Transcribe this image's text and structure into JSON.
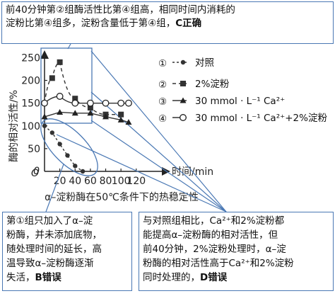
{
  "callouts": {
    "top": {
      "line1": "前40分钟第②组酶活性比第④组高，相同时间内消耗的",
      "line2_text": "淀粉比第④组多，淀粉含量低于第④组，",
      "line2_bold": "C正确"
    },
    "left": {
      "lines": [
        "第①组只加入了α–淀",
        "粉酶，并未添加底物，",
        "随处理时间的延长，高",
        "温导致α–淀粉酶逐渐"
      ],
      "last_text": "失活，",
      "last_bold": "B错误"
    },
    "right": {
      "line1": "与对照组相比，Ca²⁺和2%淀粉都",
      "line2": "能提高α–淀粉酶的相对活性，但",
      "line3": "前40分钟，2%淀粉处理时，α–淀",
      "line4": "粉酶的相对活性高于Ca²⁺和2%淀粉",
      "line5_text": "同时处理的，",
      "line5_bold": "D错误"
    }
  },
  "chart_data": {
    "type": "line",
    "title": "α–淀粉酶在50℃条件下的热稳定性",
    "xlabel": "时间/min",
    "ylabel": "酶的相对活性/%",
    "x_ticks": [
      "20",
      "40",
      "60",
      "80",
      "100",
      "120"
    ],
    "y_ticks": [
      "0",
      "50",
      "100",
      "150",
      "200",
      "250"
    ],
    "xlim": [
      0,
      130
    ],
    "ylim": [
      0,
      270
    ],
    "legend_position": "right",
    "series": [
      {
        "id": "s1",
        "name": "对照",
        "marker": "●",
        "x": [
          0,
          10,
          20,
          30,
          40,
          50
        ],
        "y": [
          100,
          85,
          60,
          35,
          12,
          0
        ]
      },
      {
        "id": "s2",
        "name": "2%淀粉",
        "marker": "■",
        "x": [
          0,
          10,
          20,
          40,
          60,
          80,
          100
        ],
        "y": [
          150,
          205,
          240,
          160,
          140,
          125,
          125
        ]
      },
      {
        "id": "s3",
        "name": "30 mmol · L⁻¹ Ca²⁺",
        "marker": "▲",
        "x": [
          0,
          20,
          40,
          60,
          80,
          100,
          110
        ],
        "y": [
          120,
          130,
          128,
          128,
          120,
          113,
          108
        ]
      },
      {
        "id": "s4",
        "name": "30 mmol · L⁻¹ Ca²⁺+2%淀粉",
        "marker": "○",
        "x": [
          0,
          20,
          40,
          60,
          80,
          100,
          110
        ],
        "y": [
          150,
          165,
          150,
          150,
          150,
          150,
          150
        ]
      }
    ],
    "legend_numbers": [
      "①",
      "②",
      "③",
      "④"
    ]
  }
}
